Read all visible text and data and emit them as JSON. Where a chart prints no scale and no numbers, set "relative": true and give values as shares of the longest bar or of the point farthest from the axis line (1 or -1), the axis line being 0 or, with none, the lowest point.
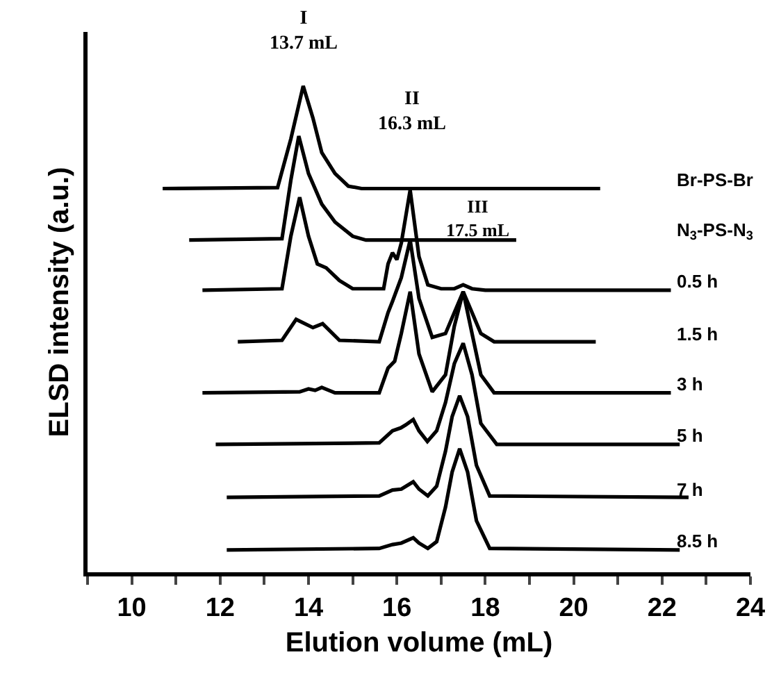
{
  "chart_data": {
    "type": "line",
    "relative": true,
    "xlabel": "Elution volume (mL)",
    "ylabel": "ELSD intensity (a.u.)",
    "xlim": [
      9,
      24
    ],
    "xticks": [
      {
        "value": 9,
        "label": null
      },
      10,
      {
        "value": 11,
        "label": null
      },
      12,
      {
        "value": 13,
        "label": null
      },
      14,
      {
        "value": 15,
        "label": null
      },
      16,
      {
        "value": 17,
        "label": null
      },
      18,
      {
        "value": 19,
        "label": null
      },
      20,
      {
        "value": 21,
        "label": null
      },
      22,
      {
        "value": 23,
        "label": null
      },
      24
    ],
    "grid": false,
    "legend": false,
    "marker": "none",
    "line_style": "solid",
    "annotations": [
      "I\n13.7 mL",
      "II\n16.3 mL",
      "III\n17.5 mL"
    ],
    "series": [
      {
        "name": "Br-PS-Br",
        "color": "#000000",
        "x": [
          10.7,
          13.3,
          13.6,
          13.88,
          14.1,
          14.3,
          14.6,
          14.9,
          15.2,
          20.6
        ],
        "values": [
          0.789,
          0.791,
          0.891,
          1.0,
          0.934,
          0.863,
          0.82,
          0.794,
          0.789,
          0.789
        ]
      },
      {
        "name": "N$_{3}$-PS-N$_{3}$",
        "color": "#000000",
        "x": [
          11.3,
          13.4,
          13.6,
          13.78,
          14.0,
          14.3,
          14.6,
          15.0,
          15.3,
          18.7
        ],
        "values": [
          0.683,
          0.686,
          0.806,
          0.897,
          0.82,
          0.757,
          0.72,
          0.691,
          0.683,
          0.683
        ]
      },
      {
        "name": "0.5 h",
        "color": "#000000",
        "x": [
          11.6,
          13.4,
          13.6,
          13.8,
          14.0,
          14.2,
          14.4,
          14.7,
          15.0,
          15.7,
          15.8,
          15.9,
          16.0,
          16.1,
          16.3,
          16.5,
          16.7,
          17.0,
          17.3,
          17.5,
          17.7,
          18.0,
          22.2
        ],
        "values": [
          0.58,
          0.583,
          0.691,
          0.771,
          0.691,
          0.634,
          0.626,
          0.6,
          0.583,
          0.583,
          0.634,
          0.657,
          0.643,
          0.677,
          0.786,
          0.649,
          0.591,
          0.583,
          0.583,
          0.591,
          0.583,
          0.58,
          0.58
        ]
      },
      {
        "name": "1.5 h",
        "color": "#000000",
        "x": [
          12.4,
          13.4,
          13.72,
          14.1,
          14.32,
          14.7,
          15.6,
          15.8,
          15.9,
          16.1,
          16.3,
          16.5,
          16.8,
          17.1,
          17.3,
          17.5,
          17.7,
          17.9,
          18.2,
          20.5
        ],
        "values": [
          0.474,
          0.477,
          0.52,
          0.503,
          0.511,
          0.477,
          0.474,
          0.534,
          0.557,
          0.606,
          0.683,
          0.563,
          0.483,
          0.491,
          0.534,
          0.577,
          0.534,
          0.491,
          0.474,
          0.474
        ]
      },
      {
        "name": "3 h",
        "color": "#000000",
        "x": [
          11.6,
          13.8,
          14.0,
          14.15,
          14.3,
          14.6,
          15.6,
          15.8,
          15.95,
          16.1,
          16.3,
          16.5,
          16.8,
          17.1,
          17.3,
          17.5,
          17.7,
          17.9,
          18.2,
          22.2
        ],
        "values": [
          0.369,
          0.371,
          0.377,
          0.374,
          0.38,
          0.369,
          0.369,
          0.42,
          0.434,
          0.491,
          0.577,
          0.449,
          0.371,
          0.406,
          0.506,
          0.577,
          0.491,
          0.406,
          0.369,
          0.369
        ]
      },
      {
        "name": "5 h",
        "color": "#000000",
        "x": [
          11.9,
          15.6,
          15.9,
          16.09,
          16.2,
          16.37,
          16.5,
          16.69,
          16.9,
          17.1,
          17.3,
          17.5,
          17.7,
          17.9,
          18.26,
          22.4
        ],
        "values": [
          0.263,
          0.266,
          0.291,
          0.297,
          0.303,
          0.314,
          0.291,
          0.269,
          0.291,
          0.349,
          0.429,
          0.471,
          0.406,
          0.306,
          0.263,
          0.263
        ]
      },
      {
        "name": "7 h",
        "color": "#000000",
        "x": [
          12.15,
          15.6,
          15.9,
          16.1,
          16.37,
          16.5,
          16.7,
          16.9,
          17.1,
          17.25,
          17.42,
          17.6,
          17.8,
          18.1,
          22.6
        ],
        "values": [
          0.154,
          0.157,
          0.169,
          0.171,
          0.186,
          0.171,
          0.157,
          0.177,
          0.249,
          0.32,
          0.363,
          0.32,
          0.22,
          0.157,
          0.154
        ]
      },
      {
        "name": "8.5 h",
        "color": "#000000",
        "x": [
          12.15,
          15.6,
          15.9,
          16.1,
          16.37,
          16.5,
          16.7,
          16.9,
          17.1,
          17.25,
          17.42,
          17.6,
          17.8,
          18.1,
          22.4
        ],
        "values": [
          0.046,
          0.049,
          0.057,
          0.06,
          0.071,
          0.06,
          0.049,
          0.063,
          0.134,
          0.206,
          0.254,
          0.206,
          0.106,
          0.049,
          0.046
        ]
      }
    ]
  }
}
